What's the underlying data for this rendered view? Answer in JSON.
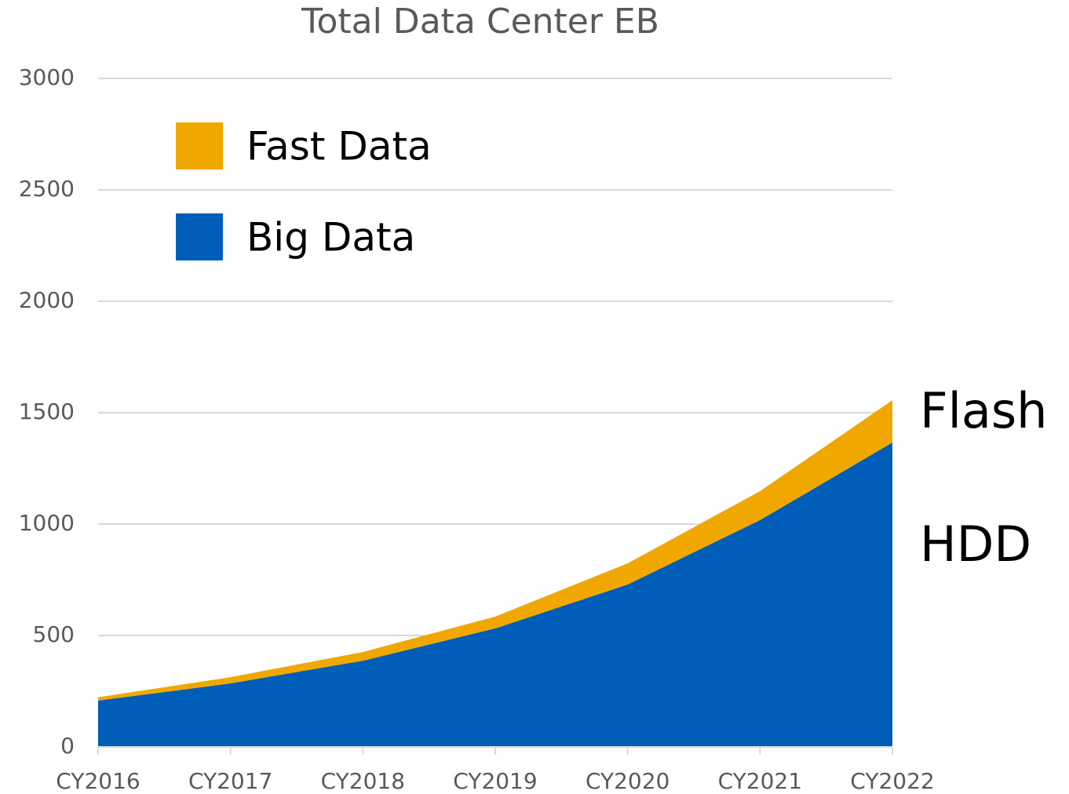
{
  "chart_data": {
    "type": "stacked_area",
    "title": "Total Data Center EB",
    "categories": [
      "CY2016",
      "CY2017",
      "CY2018",
      "CY2019",
      "CY2020",
      "CY2021",
      "CY2022"
    ],
    "series": [
      {
        "name": "Big Data",
        "color": "#005eb8",
        "values": [
          208,
          285,
          387,
          532,
          729,
          1018,
          1366
        ]
      },
      {
        "name": "Fast Data",
        "color": "#f0a800",
        "values": [
          15,
          28,
          39,
          53,
          95,
          130,
          190
        ]
      }
    ],
    "annotations": [
      "Flash",
      "HDD"
    ],
    "ylim": [
      0,
      3000
    ],
    "yticks": [
      0,
      500,
      1000,
      1500,
      2000,
      2500,
      3000
    ],
    "grid": true
  }
}
